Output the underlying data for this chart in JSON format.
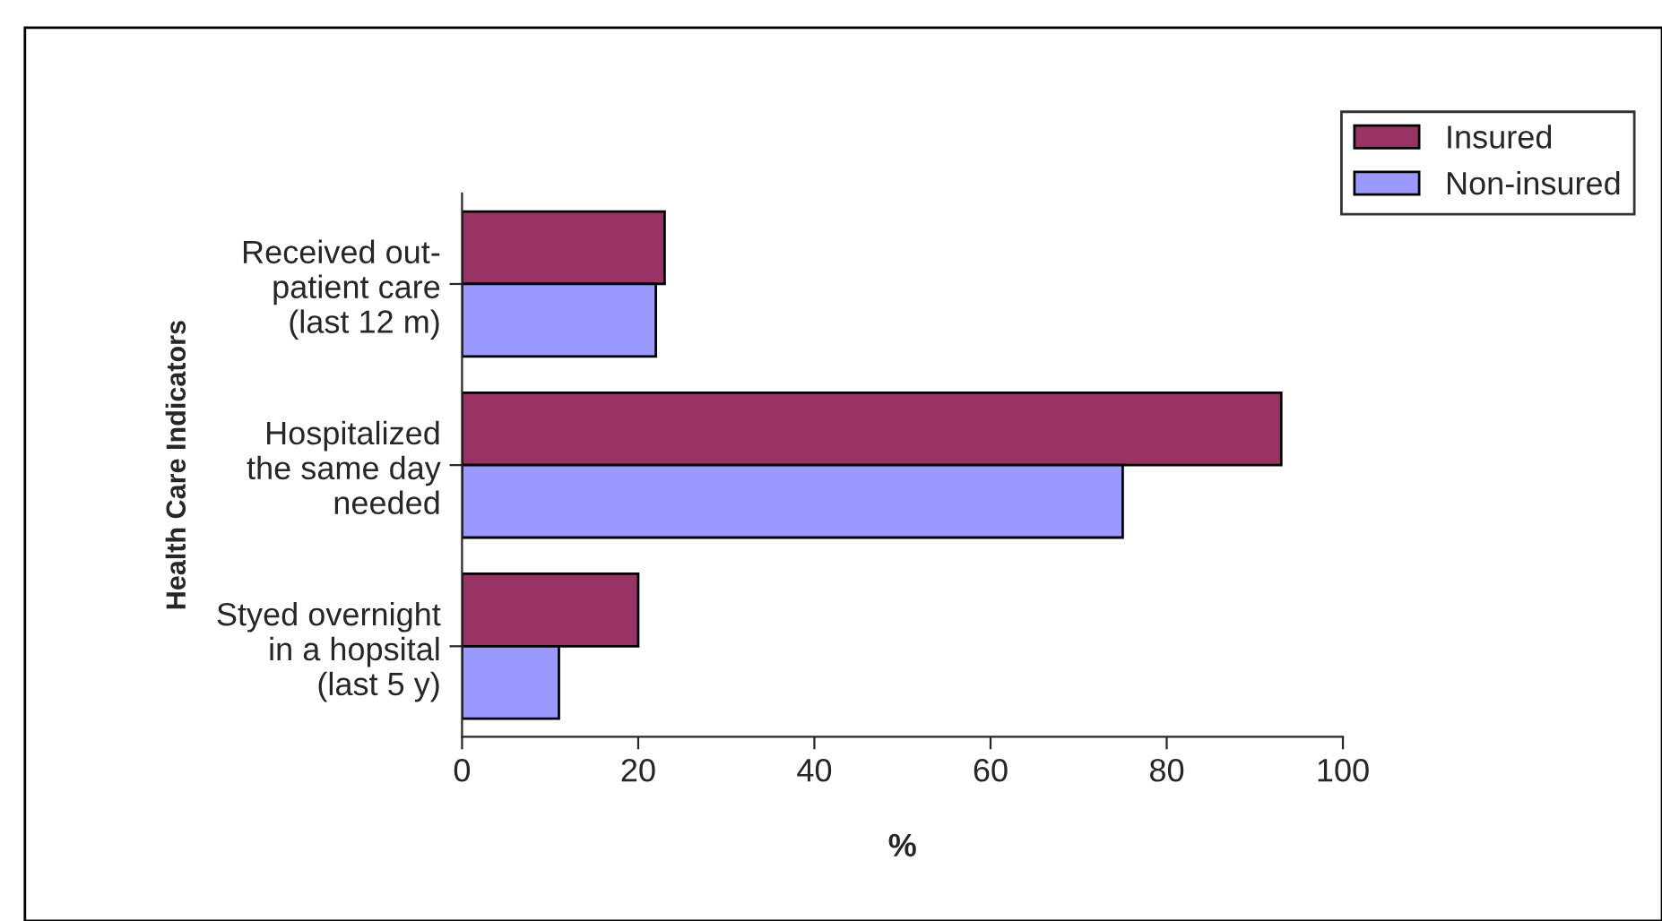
{
  "chart_data": {
    "type": "bar",
    "orientation": "horizontal",
    "xlabel": "%",
    "ylabel": "Health Care Indicators",
    "categories": [
      "Received out-\npatient care\n(last 12 m)",
      "Hospitalized\nthe same day\nneeded",
      "Styed overnight\nin a hopsital\n(last 5 y)"
    ],
    "series": [
      {
        "name": "Insured",
        "color": "#993366",
        "values": [
          23,
          93,
          20
        ]
      },
      {
        "name": "Non-insured",
        "color": "#9999ff",
        "values": [
          22,
          75,
          11
        ]
      }
    ],
    "xlim": [
      0,
      100
    ],
    "xticks": [
      0,
      20,
      40,
      60,
      80,
      100
    ],
    "grid": false,
    "legend": "top right"
  }
}
